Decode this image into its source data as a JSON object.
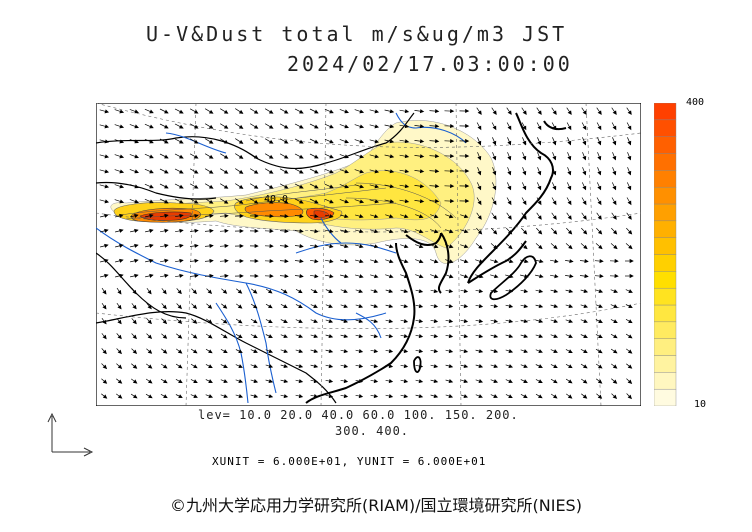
{
  "title": {
    "line1": "U-V&Dust total m/s&ug/m3 JST",
    "line2": "2024/02/17.03:00:00"
  },
  "colorbar": {
    "max_label": "400",
    "min_label": "10",
    "colors": [
      "#fffbe0",
      "#fff7c0",
      "#fff3a0",
      "#ffef80",
      "#ffeb60",
      "#ffe740",
      "#ffe320",
      "#ffdf00",
      "#ffd000",
      "#ffc000",
      "#ffb000",
      "#ffa000",
      "#ff9000",
      "#ff8000",
      "#ff7000",
      "#ff6000",
      "#ff5000",
      "#ff4000"
    ]
  },
  "contour_label": "40.0",
  "levels": {
    "line1": "lev= 10.0 20.0 40.0 60.0 100. 150. 200.",
    "line2": "300. 400."
  },
  "unit_text": "XUNIT = 6.000E+01, YUNIT = 6.000E+01",
  "copyright": "©九州大学応用力学研究所(RIAM)/国立環境研究所(NIES)",
  "palette": {
    "coast": "#000000",
    "river": "#1a5fd0",
    "border": "#000000",
    "arrow": "#000000",
    "dust_low": "#fff6b0",
    "dust_mid": "#ffd21a",
    "dust_high": "#ff6a00",
    "dust_max": "#e83c00"
  }
}
